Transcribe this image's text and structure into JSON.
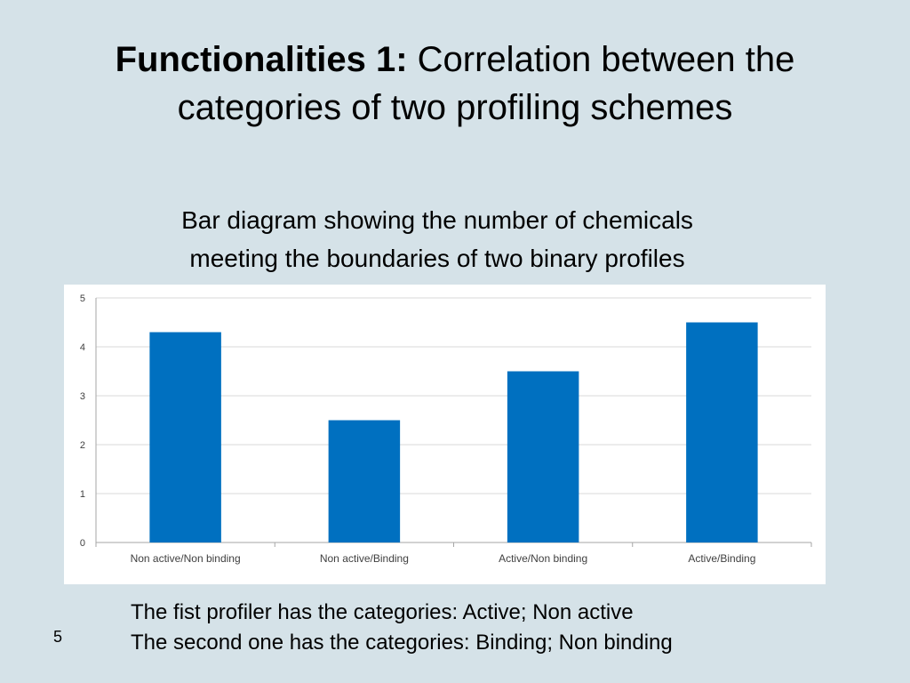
{
  "slide": {
    "title_bold": "Functionalities 1:",
    "title_rest": " Correlation between  the categories of two profiling schemes",
    "subtitle_line1": "Bar diagram showing the number of chemicals",
    "subtitle_line2": "meeting the boundaries of two binary profiles",
    "note_line1": "The fist profiler has the categories: Active; Non active",
    "note_line2": "The second one has the categories: Binding; Non binding",
    "slide_number": "5"
  },
  "colors": {
    "background": "#d5e2e8",
    "bar": "#0070c0",
    "grid": "#d9d9d9"
  },
  "chart_data": {
    "type": "bar",
    "categories": [
      "Non active/Non binding",
      "Non active/Binding",
      "Active/Non binding",
      "Active/Binding"
    ],
    "values": [
      4.3,
      2.5,
      3.5,
      4.5
    ],
    "yticks": [
      "0",
      "1",
      "2",
      "3",
      "4",
      "5"
    ],
    "ylim": [
      0,
      5
    ],
    "grid": true,
    "legend": "none"
  }
}
